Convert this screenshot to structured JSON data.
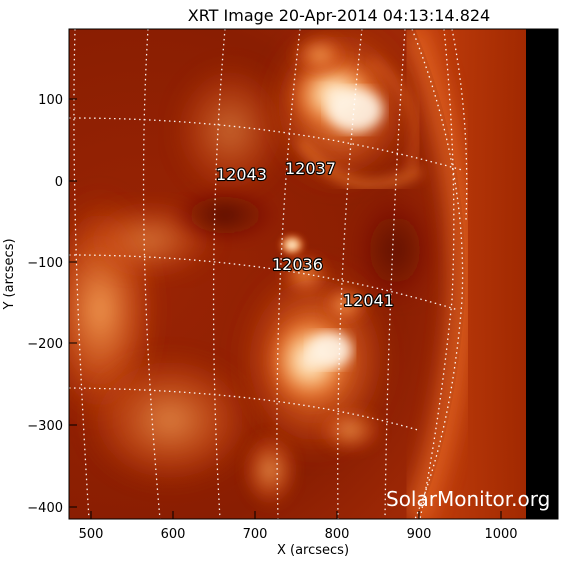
{
  "title": "XRT Image 20-Apr-2014 04:13:14.824",
  "xlabel": "X (arcsecs)",
  "ylabel": "Y (arcsecs)",
  "x_ticks": [
    "500",
    "600",
    "700",
    "800",
    "900",
    "1000"
  ],
  "y_ticks": [
    "100",
    "0",
    "−100",
    "−200",
    "−300",
    "−400"
  ],
  "active_regions": [
    {
      "id": "12043",
      "x": 668,
      "y": 8
    },
    {
      "id": "12037",
      "x": 779,
      "y": 13
    },
    {
      "id": "12036",
      "x": 765,
      "y": -100
    },
    {
      "id": "12041",
      "x": 839,
      "y": -148
    }
  ],
  "watermark": "SolarMonitor.org",
  "colors": {
    "disk_dark": "#6e0f00",
    "disk_mid": "#c23c08",
    "disk_bright": "#f08a3a",
    "loop_hot": "#fff4e0",
    "off_limb": "#a82a00",
    "no_data": "#000000",
    "grid": "#ffffff"
  }
}
